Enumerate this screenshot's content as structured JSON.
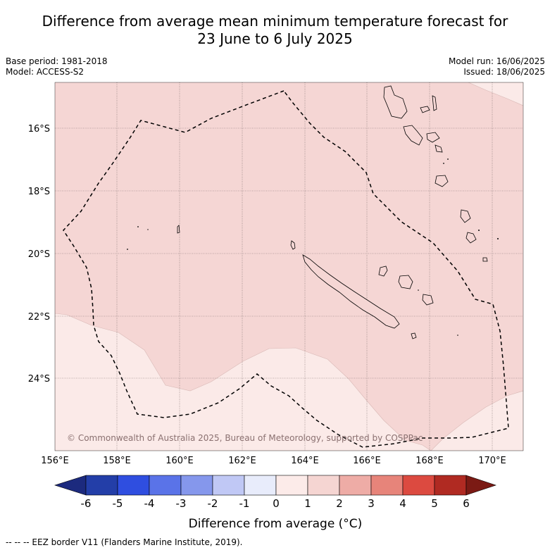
{
  "title": {
    "line1": "Difference from average mean minimum temperature forecast for",
    "line2": "23 June to 6 July 2025"
  },
  "meta_left": {
    "base_period": "Base period: 1981-2018",
    "model": "Model: ACCESS-S2"
  },
  "meta_right": {
    "model_run": "Model run: 16/06/2025",
    "issued": "Issued: 18/06/2025"
  },
  "map": {
    "lat_labels": [
      "16°S",
      "18°S",
      "20°S",
      "22°S",
      "24°S"
    ],
    "lon_labels": [
      "156°E",
      "158°E",
      "160°E",
      "162°E",
      "164°E",
      "166°E",
      "168°E",
      "170°E"
    ],
    "copyright": "© Commonwealth of Australia 2025, Bureau of Meteorology, supported by COSPPac"
  },
  "colorbar": {
    "ticks": [
      "-6",
      "-5",
      "-4",
      "-3",
      "-2",
      "-1",
      "0",
      "1",
      "2",
      "3",
      "4",
      "5",
      "6"
    ],
    "colors": [
      "#1c2a7e",
      "#233ea8",
      "#2f4ee0",
      "#5a73e8",
      "#8597ec",
      "#c0c8f5",
      "#e8ecfb",
      "#fcebe9",
      "#f5d5d2",
      "#eeaca6",
      "#e7847a",
      "#dc4a40",
      "#b02a22",
      "#7b1a14"
    ],
    "label": "Difference from average (°C)"
  },
  "footer": "--  --  -- EEZ border V11 (Flanders Marine Institute, 2019)."
}
